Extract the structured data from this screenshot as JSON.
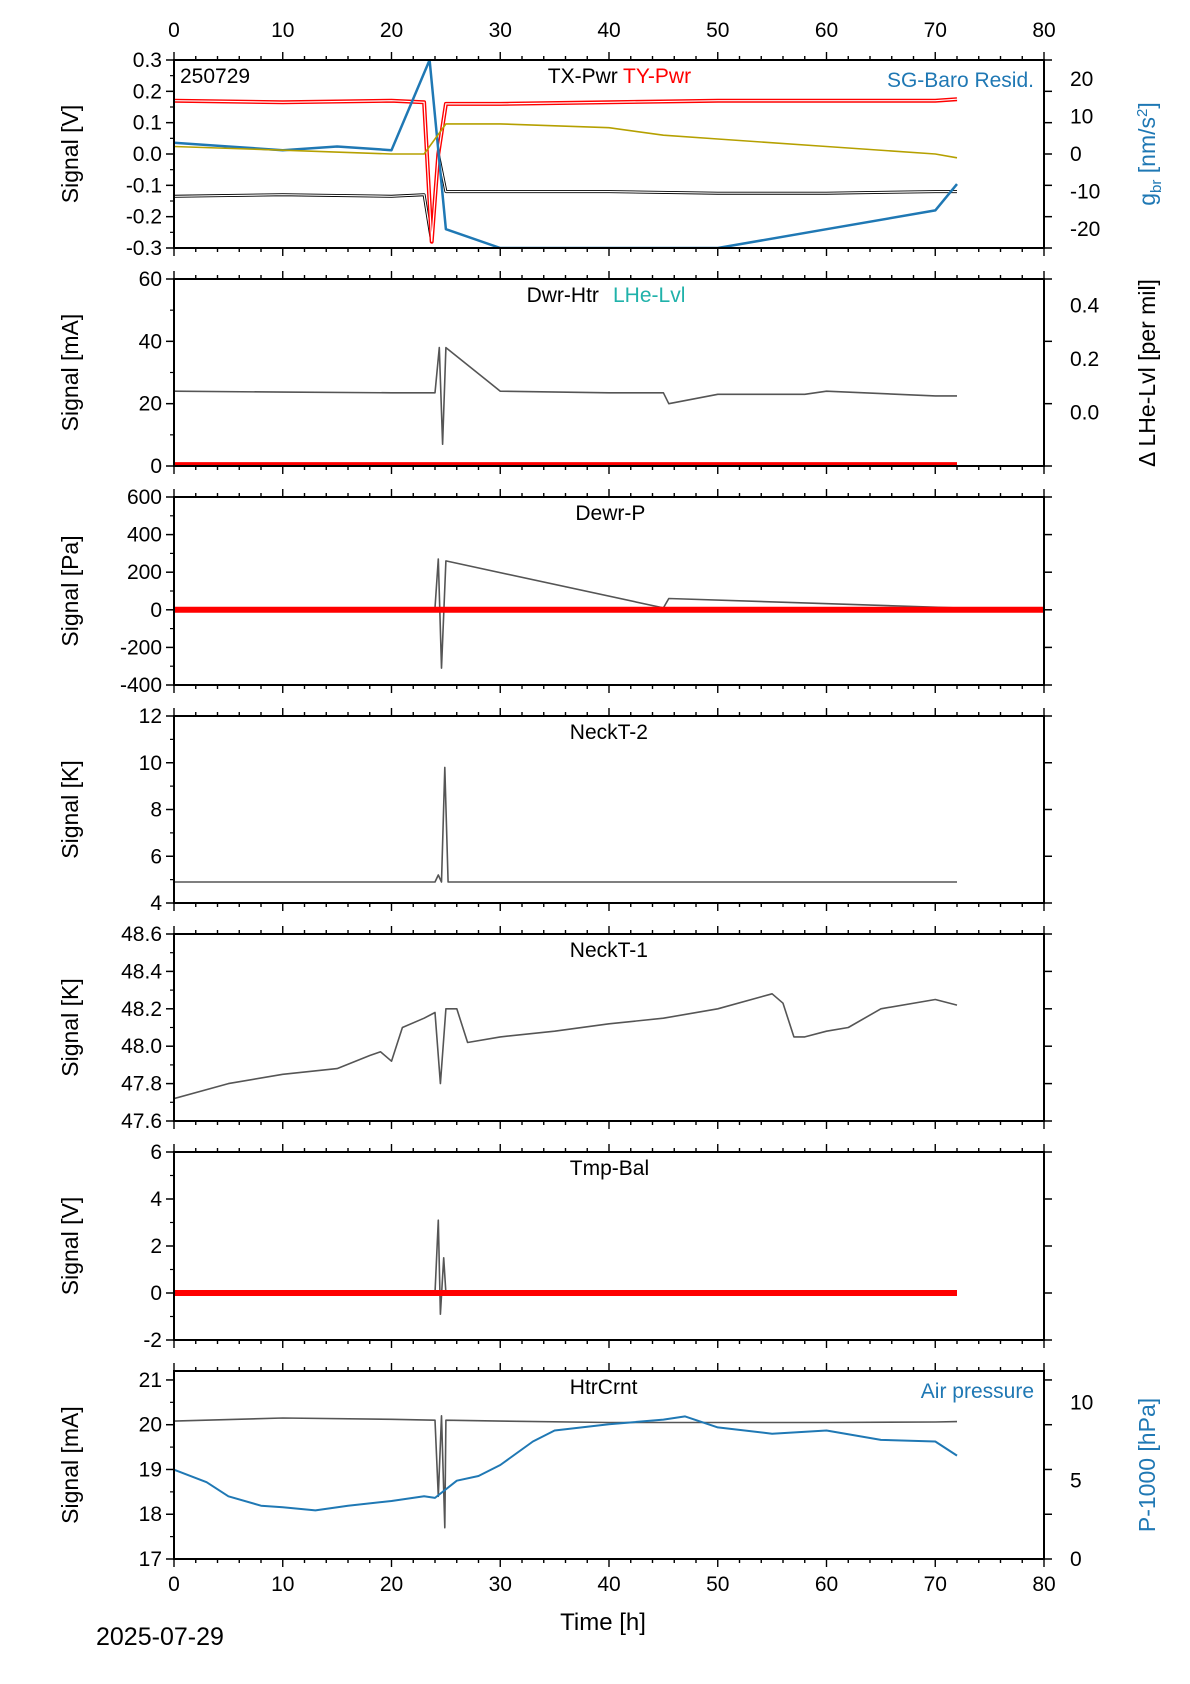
{
  "date_label": "2025-07-29",
  "x_axis": {
    "label": "Time [h]",
    "ticks": [
      "0",
      "10",
      "20",
      "30",
      "40",
      "50",
      "60",
      "70",
      "80"
    ],
    "range": [
      0,
      80
    ]
  },
  "colors": {
    "black": "#000000",
    "gray": "#555555",
    "red": "#ff0000",
    "blue": "#1f78b4",
    "teal": "#20b2aa",
    "olive": "#b5a000",
    "white": "#ffffff"
  },
  "chart_data": [
    {
      "type": "line",
      "id": "p1",
      "ylabel": "Signal [V]",
      "ylim": [
        -0.3,
        0.3
      ],
      "yticks": [
        "0.3",
        "0.2",
        "0.1",
        "0.0",
        "-0.1",
        "-0.2",
        "-0.3"
      ],
      "ytick_values": [
        0.3,
        0.2,
        0.1,
        0.0,
        -0.1,
        -0.2,
        -0.3
      ],
      "tag": "250729",
      "titles": [
        {
          "text": "TX-Pwr",
          "color": "#000000"
        },
        {
          "text": "TY-Pwr",
          "color": "#ff0000"
        }
      ],
      "right_axis": {
        "label": "g_br [nm/s²]",
        "label_main": "g",
        "label_sub": "br",
        "label_unit": " [nm/s",
        "label_sup": "2",
        "label_close": "]",
        "ylim": [
          -25,
          25
        ],
        "ticks": [
          "20",
          "10",
          "0",
          "-10",
          "-20"
        ],
        "tick_values": [
          20,
          10,
          0,
          -10,
          -20
        ],
        "annotation": "SG-Baro Resid."
      },
      "series": [
        {
          "name": "TX-Pwr",
          "color": "#000000",
          "x": [
            0,
            10,
            20,
            23,
            23.7,
            24.3,
            25,
            30,
            40,
            50,
            60,
            70,
            72
          ],
          "y": [
            -0.135,
            -0.13,
            -0.135,
            -0.13,
            -0.28,
            0.0,
            -0.12,
            -0.12,
            -0.12,
            -0.125,
            -0.125,
            -0.12,
            -0.12
          ]
        },
        {
          "name": "TY-Pwr",
          "color": "#ff0000",
          "x": [
            0,
            10,
            20,
            23,
            23.7,
            24.3,
            25,
            30,
            40,
            50,
            60,
            70,
            72
          ],
          "y": [
            0.17,
            0.165,
            0.17,
            0.165,
            -0.28,
            0.0,
            0.16,
            0.16,
            0.165,
            0.17,
            0.17,
            0.17,
            0.175
          ]
        },
        {
          "name": "SG-Baro Resid.",
          "color": "#1f78b4",
          "x": [
            0,
            5,
            10,
            15,
            20,
            23.5,
            25,
            30,
            40,
            50,
            60,
            70,
            72
          ],
          "y": [
            3,
            2,
            1,
            2,
            1,
            25,
            -20,
            -25,
            -25,
            -25,
            -20,
            -15,
            -8
          ]
        },
        {
          "color": "#b5a000",
          "x": [
            0,
            10,
            20,
            23,
            25,
            30,
            40,
            45,
            50,
            60,
            70,
            72
          ],
          "y": [
            2,
            1,
            0,
            0,
            8,
            8,
            7,
            5,
            4,
            2,
            0,
            -1
          ]
        }
      ]
    },
    {
      "type": "line",
      "id": "p2",
      "ylabel": "Signal [mA]",
      "ylim": [
        0,
        60
      ],
      "yticks": [
        "60",
        "40",
        "20",
        "0"
      ],
      "ytick_values": [
        60,
        40,
        20,
        0
      ],
      "titles": [
        {
          "text": "Dwr-Htr",
          "color": "#000000"
        },
        {
          "text": "LHe-Lvl",
          "color": "#20b2aa"
        }
      ],
      "right_axis": {
        "label": "Δ LHe-Lvl [per mil]",
        "ticks": [
          "0.4",
          "0.2",
          "0.0"
        ],
        "tick_values": [
          0.4,
          0.2,
          0.0
        ],
        "ylim": [
          -0.2,
          0.5
        ]
      },
      "series": [
        {
          "name": "Dwr-Htr",
          "color": "#555555",
          "x": [
            0,
            10,
            20,
            24,
            24.4,
            24.7,
            25,
            30,
            40,
            45,
            45.5,
            50,
            58,
            60,
            70,
            72
          ],
          "y": [
            24,
            23.7,
            23.5,
            23.5,
            38,
            7,
            38,
            24,
            23.5,
            23.5,
            20,
            23,
            23,
            24,
            22.5,
            22.5
          ]
        },
        {
          "color": "#ff0000",
          "x": [
            0,
            72
          ],
          "y": [
            0.3,
            0.3
          ]
        }
      ]
    },
    {
      "type": "line",
      "id": "p3",
      "ylabel": "Signal [Pa]",
      "ylim": [
        -400,
        600
      ],
      "yticks": [
        "600",
        "400",
        "200",
        "0",
        "-200",
        "-400"
      ],
      "ytick_values": [
        600,
        400,
        200,
        0,
        -200,
        -400
      ],
      "titles": [
        {
          "text": "Dewr-P",
          "color": "#000000"
        }
      ],
      "series": [
        {
          "name": "Dewr-P",
          "color": "#555555",
          "x": [
            0,
            24,
            24.3,
            24.6,
            25,
            45,
            45.5,
            72
          ],
          "y": [
            10,
            10,
            270,
            -310,
            260,
            10,
            60,
            10
          ]
        },
        {
          "color": "#ff0000",
          "x": [
            0,
            72,
            80
          ],
          "y": [
            0,
            0,
            0
          ]
        }
      ]
    },
    {
      "type": "line",
      "id": "p4",
      "ylabel": "Signal [K]",
      "ylim": [
        4,
        12
      ],
      "yticks": [
        "12",
        "10",
        "8",
        "6",
        "4"
      ],
      "ytick_values": [
        12,
        10,
        8,
        6,
        4
      ],
      "titles": [
        {
          "text": "NeckT-2",
          "color": "#000000"
        }
      ],
      "series": [
        {
          "name": "NeckT-2",
          "color": "#555555",
          "x": [
            0,
            24,
            24.3,
            24.6,
            24.9,
            25.2,
            72
          ],
          "y": [
            4.9,
            4.9,
            5.2,
            4.9,
            9.8,
            4.9,
            4.9
          ]
        }
      ]
    },
    {
      "type": "line",
      "id": "p5",
      "ylabel": "Signal [K]",
      "ylim": [
        47.6,
        48.6
      ],
      "yticks": [
        "48.6",
        "48.4",
        "48.2",
        "48.0",
        "47.8",
        "47.6"
      ],
      "ytick_values": [
        48.6,
        48.4,
        48.2,
        48.0,
        47.8,
        47.6
      ],
      "titles": [
        {
          "text": "NeckT-1",
          "color": "#000000"
        }
      ],
      "series": [
        {
          "name": "NeckT-1",
          "color": "#555555",
          "x": [
            0,
            5,
            10,
            15,
            18,
            19,
            20,
            21,
            23,
            24,
            24.5,
            25,
            26,
            27,
            30,
            35,
            40,
            45,
            50,
            55,
            56,
            57,
            58,
            60,
            62,
            65,
            70,
            72
          ],
          "y": [
            47.72,
            47.8,
            47.85,
            47.88,
            47.95,
            47.97,
            47.92,
            48.1,
            48.15,
            48.18,
            47.8,
            48.2,
            48.2,
            48.02,
            48.05,
            48.08,
            48.12,
            48.15,
            48.2,
            48.28,
            48.23,
            48.05,
            48.05,
            48.08,
            48.1,
            48.2,
            48.25,
            48.22
          ]
        }
      ]
    },
    {
      "type": "line",
      "id": "p6",
      "ylabel": "Signal [V]",
      "ylim": [
        -2,
        6
      ],
      "yticks": [
        "6",
        "4",
        "2",
        "0",
        "-2"
      ],
      "ytick_values": [
        6,
        4,
        2,
        0,
        -2
      ],
      "titles": [
        {
          "text": "Tmp-Bal",
          "color": "#000000"
        }
      ],
      "series": [
        {
          "name": "Tmp-Bal",
          "color": "#555555",
          "x": [
            0,
            24,
            24.3,
            24.5,
            24.8,
            25,
            72
          ],
          "y": [
            0,
            0,
            3.1,
            -0.9,
            1.5,
            0,
            0
          ]
        },
        {
          "color": "#ff0000",
          "x": [
            0,
            72
          ],
          "y": [
            0,
            0
          ]
        }
      ]
    },
    {
      "type": "line",
      "id": "p7",
      "ylabel": "Signal [mA]",
      "ylim": [
        17,
        21.2
      ],
      "yticks": [
        "21",
        "20",
        "19",
        "18",
        "17"
      ],
      "ytick_values": [
        21,
        20,
        19,
        18,
        17
      ],
      "titles": [
        {
          "text": "HtrCrnt",
          "color": "#000000"
        }
      ],
      "right_axis": {
        "label": "P-1000 [hPa]",
        "ylim": [
          0,
          12
        ],
        "ticks": [
          "10",
          "5",
          "0"
        ],
        "tick_values": [
          10,
          5,
          0
        ],
        "annotation": "Air pressure"
      },
      "series": [
        {
          "name": "HtrCrnt",
          "color": "#555555",
          "x": [
            0,
            10,
            20,
            24,
            24.3,
            24.6,
            24.9,
            25,
            30,
            40,
            50,
            60,
            70,
            72
          ],
          "y": [
            20.08,
            20.15,
            20.12,
            20.1,
            18.4,
            20.2,
            17.7,
            20.1,
            20.08,
            20.05,
            20.05,
            20.05,
            20.06,
            20.07
          ]
        },
        {
          "name": "Air pressure",
          "color": "#1f78b4",
          "x": [
            0,
            3,
            5,
            8,
            10,
            13,
            16,
            20,
            23,
            24,
            26,
            28,
            30,
            33,
            35,
            40,
            45,
            47,
            50,
            55,
            60,
            65,
            70,
            72
          ],
          "y": [
            5.7,
            4.9,
            4,
            3.4,
            3.3,
            3.1,
            3.4,
            3.7,
            4,
            3.9,
            5,
            5.3,
            6,
            7.5,
            8.2,
            8.6,
            8.9,
            9.1,
            8.4,
            8,
            8.2,
            7.6,
            7.5,
            6.6
          ]
        }
      ]
    }
  ]
}
